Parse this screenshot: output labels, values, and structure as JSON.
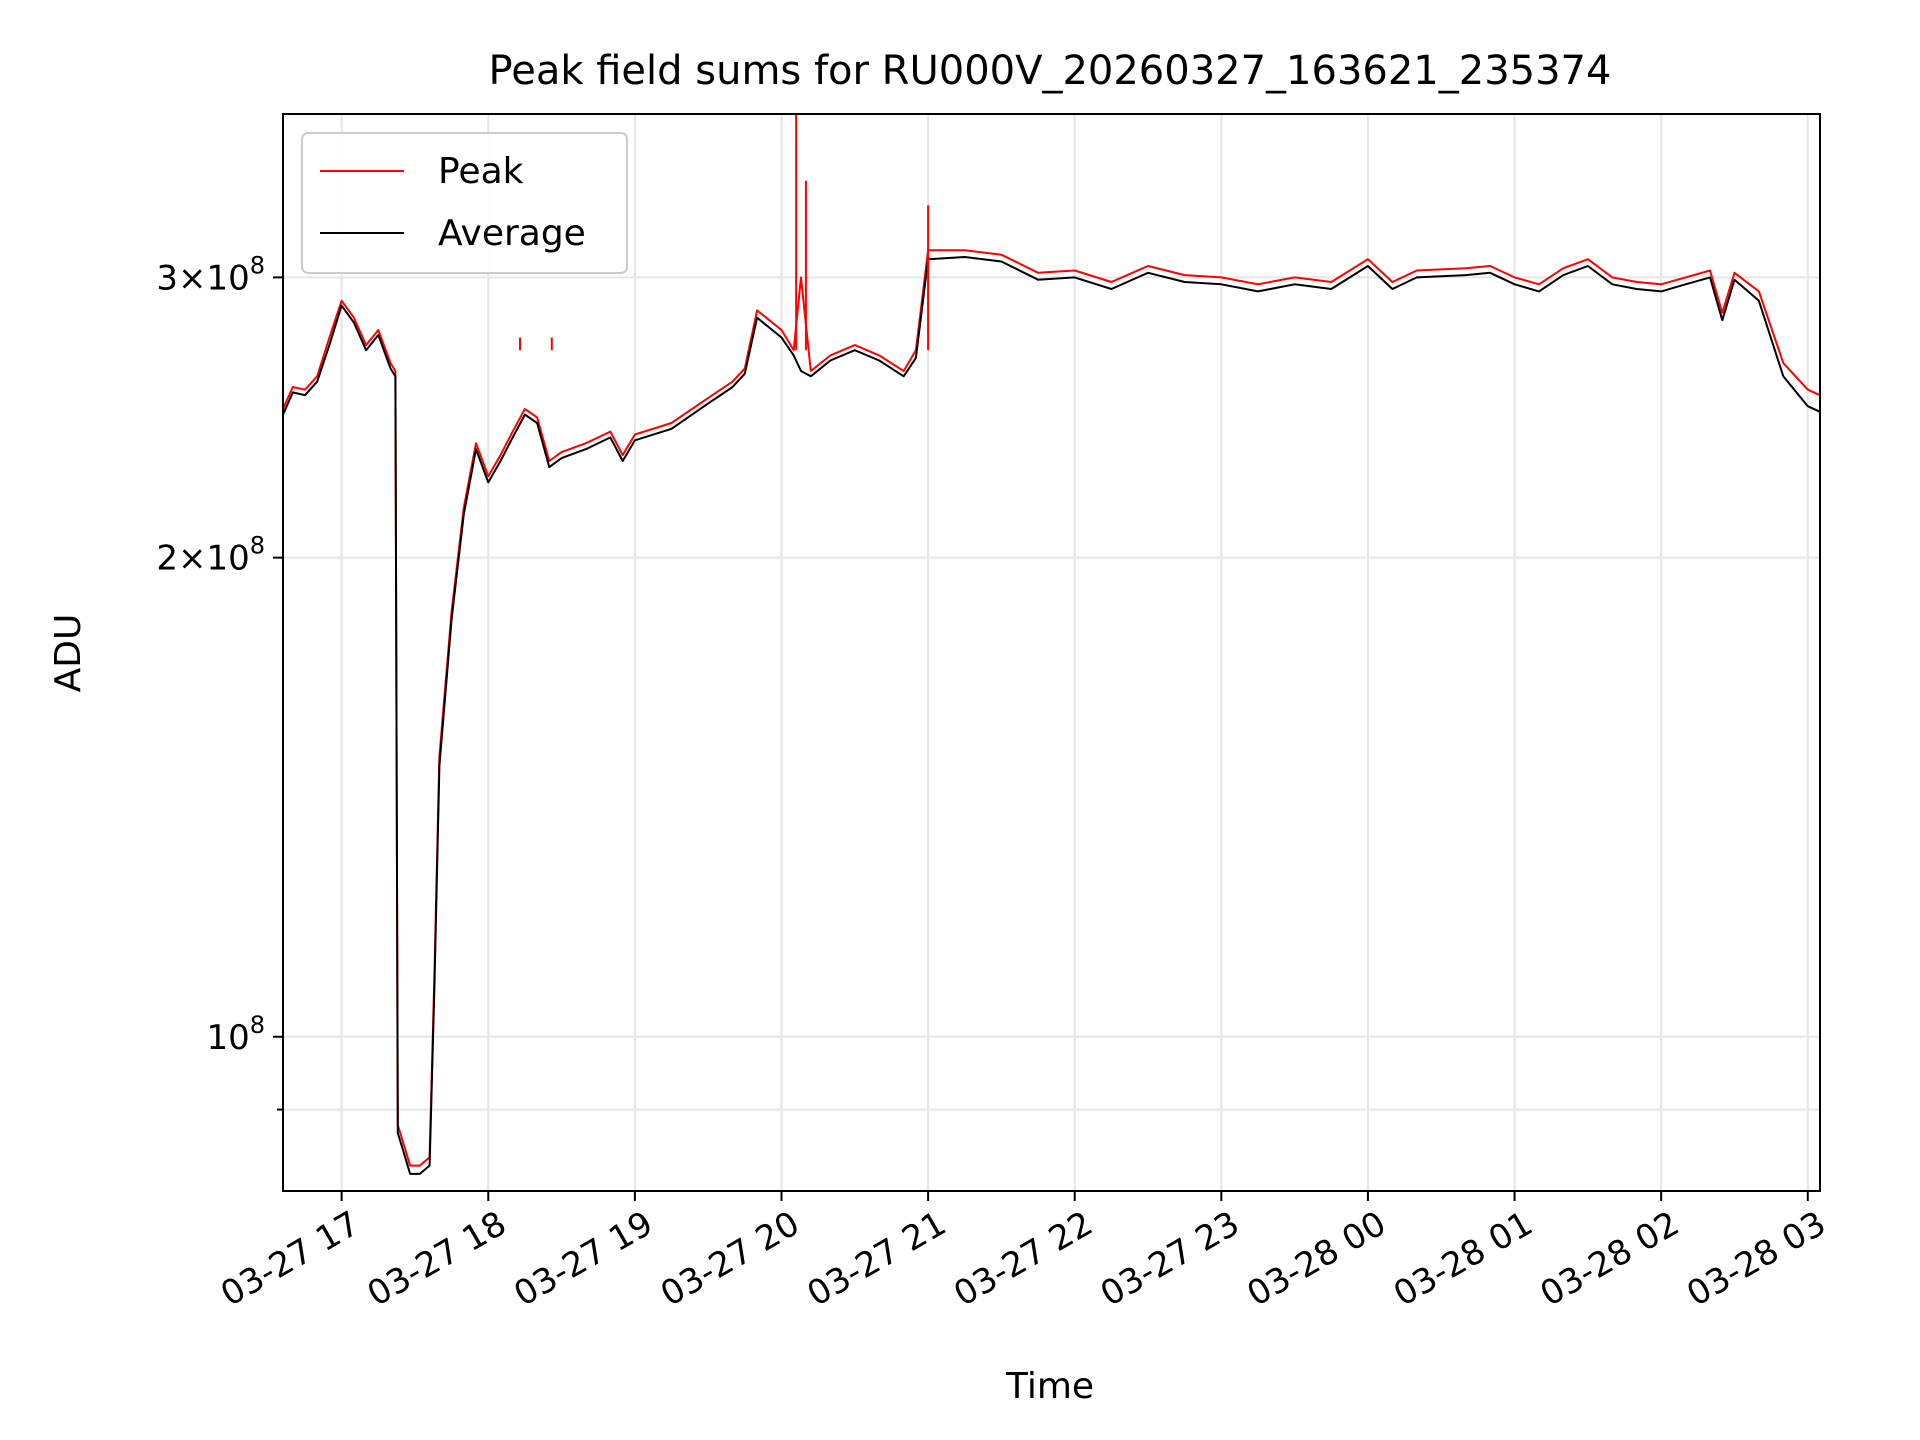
{
  "chart_data": {
    "type": "line",
    "title": "Peak field sums for RU000V_20260327_163621_235374",
    "xlabel": "Time",
    "ylabel": "ADU",
    "x_ticks": [
      "03-27 17",
      "03-27 18",
      "03-27 19",
      "03-27 20",
      "03-27 21",
      "03-27 22",
      "03-27 23",
      "03-28 00",
      "03-28 01",
      "03-28 02",
      "03-28 03"
    ],
    "y_ticks": [
      {
        "base": "10",
        "exp": "8",
        "value": 100000000
      },
      {
        "base": "2×10",
        "exp": "8",
        "value": 200000000
      },
      {
        "base": "3×10",
        "exp": "8",
        "value": 300000000
      }
    ],
    "xlim": [
      "2026-03-27 16:36",
      "2026-03-28 03:05"
    ],
    "ylim": [
      80000000,
      380000000
    ],
    "y_scale": "log",
    "grid": true,
    "legend_position": "top-left",
    "series": [
      {
        "name": "Peak",
        "color": "#ff0000",
        "points": [
          [
            "16:36",
            248000000
          ],
          [
            "16:40",
            256000000
          ],
          [
            "16:45",
            255000000
          ],
          [
            "16:50",
            260000000
          ],
          [
            "16:55",
            275000000
          ],
          [
            "17:00",
            290000000
          ],
          [
            "17:05",
            283000000
          ],
          [
            "17:10",
            272000000
          ],
          [
            "17:15",
            278000000
          ],
          [
            "17:20",
            265000000
          ],
          [
            "17:22",
            262000000
          ],
          [
            "17:23",
            88000000
          ],
          [
            "17:25",
            86000000
          ],
          [
            "17:28",
            83000000
          ],
          [
            "17:32",
            83000000
          ],
          [
            "17:36",
            84000000
          ],
          [
            "17:38",
            110000000
          ],
          [
            "17:40",
            150000000
          ],
          [
            "17:45",
            185000000
          ],
          [
            "17:50",
            215000000
          ],
          [
            "17:55",
            236000000
          ],
          [
            "18:00",
            225000000
          ],
          [
            "18:05",
            232000000
          ],
          [
            "18:10",
            240000000
          ],
          [
            "18:15",
            248000000
          ],
          [
            "18:20",
            245000000
          ],
          [
            "18:25",
            230000000
          ],
          [
            "18:30",
            233000000
          ],
          [
            "18:40",
            236000000
          ],
          [
            "18:50",
            240000000
          ],
          [
            "18:55",
            232000000
          ],
          [
            "19:00",
            239000000
          ],
          [
            "19:15",
            243000000
          ],
          [
            "19:30",
            252000000
          ],
          [
            "19:40",
            258000000
          ],
          [
            "19:45",
            263000000
          ],
          [
            "19:50",
            286000000
          ],
          [
            "20:00",
            278000000
          ],
          [
            "20:05",
            270000000
          ],
          [
            "20:08",
            300000000
          ],
          [
            "20:12",
            262000000
          ],
          [
            "20:20",
            268000000
          ],
          [
            "20:30",
            272000000
          ],
          [
            "20:40",
            268000000
          ],
          [
            "20:50",
            262000000
          ],
          [
            "20:55",
            270000000
          ],
          [
            "21:00",
            312000000
          ],
          [
            "21:15",
            312000000
          ],
          [
            "21:30",
            310000000
          ],
          [
            "21:45",
            302000000
          ],
          [
            "22:00",
            303000000
          ],
          [
            "22:15",
            298000000
          ],
          [
            "22:30",
            305000000
          ],
          [
            "22:45",
            301000000
          ],
          [
            "23:00",
            300000000
          ],
          [
            "23:15",
            297000000
          ],
          [
            "23:30",
            300000000
          ],
          [
            "23:45",
            298000000
          ],
          [
            "00:00",
            308000000
          ],
          [
            "00:10",
            298000000
          ],
          [
            "00:20",
            303000000
          ],
          [
            "00:40",
            304000000
          ],
          [
            "00:50",
            305000000
          ],
          [
            "01:00",
            300000000
          ],
          [
            "01:10",
            297000000
          ],
          [
            "01:20",
            304000000
          ],
          [
            "01:30",
            308000000
          ],
          [
            "01:40",
            300000000
          ],
          [
            "01:50",
            298000000
          ],
          [
            "02:00",
            297000000
          ],
          [
            "02:10",
            300000000
          ],
          [
            "02:20",
            303000000
          ],
          [
            "02:25",
            285000000
          ],
          [
            "02:30",
            302000000
          ],
          [
            "02:40",
            294000000
          ],
          [
            "02:50",
            265000000
          ],
          [
            "03:00",
            255000000
          ],
          [
            "03:05",
            253000000
          ]
        ]
      },
      {
        "name": "Average",
        "color": "#000000",
        "points": [
          [
            "16:36",
            246000000
          ],
          [
            "16:40",
            254000000
          ],
          [
            "16:45",
            253000000
          ],
          [
            "16:50",
            258000000
          ],
          [
            "16:55",
            272000000
          ],
          [
            "17:00",
            288000000
          ],
          [
            "17:05",
            281000000
          ],
          [
            "17:10",
            270000000
          ],
          [
            "17:15",
            276000000
          ],
          [
            "17:20",
            263000000
          ],
          [
            "17:22",
            260000000
          ],
          [
            "17:23",
            87000000
          ],
          [
            "17:25",
            85000000
          ],
          [
            "17:28",
            82000000
          ],
          [
            "17:32",
            82000000
          ],
          [
            "17:36",
            83000000
          ],
          [
            "17:38",
            108000000
          ],
          [
            "17:40",
            148000000
          ],
          [
            "17:45",
            183000000
          ],
          [
            "17:50",
            213000000
          ],
          [
            "17:55",
            234000000
          ],
          [
            "18:00",
            223000000
          ],
          [
            "18:05",
            230000000
          ],
          [
            "18:10",
            238000000
          ],
          [
            "18:15",
            246000000
          ],
          [
            "18:20",
            243000000
          ],
          [
            "18:25",
            228000000
          ],
          [
            "18:30",
            231000000
          ],
          [
            "18:40",
            234000000
          ],
          [
            "18:50",
            238000000
          ],
          [
            "18:55",
            230000000
          ],
          [
            "19:00",
            237000000
          ],
          [
            "19:15",
            241000000
          ],
          [
            "19:30",
            250000000
          ],
          [
            "19:40",
            256000000
          ],
          [
            "19:45",
            261000000
          ],
          [
            "19:50",
            283000000
          ],
          [
            "20:00",
            275000000
          ],
          [
            "20:05",
            268000000
          ],
          [
            "20:08",
            262000000
          ],
          [
            "20:12",
            260000000
          ],
          [
            "20:20",
            266000000
          ],
          [
            "20:30",
            270000000
          ],
          [
            "20:40",
            266000000
          ],
          [
            "20:50",
            260000000
          ],
          [
            "20:55",
            267000000
          ],
          [
            "21:00",
            308000000
          ],
          [
            "21:15",
            309000000
          ],
          [
            "21:30",
            307000000
          ],
          [
            "21:45",
            299000000
          ],
          [
            "22:00",
            300000000
          ],
          [
            "22:15",
            295000000
          ],
          [
            "22:30",
            302000000
          ],
          [
            "22:45",
            298000000
          ],
          [
            "23:00",
            297000000
          ],
          [
            "23:15",
            294000000
          ],
          [
            "23:30",
            297000000
          ],
          [
            "23:45",
            295000000
          ],
          [
            "00:00",
            305000000
          ],
          [
            "00:10",
            295000000
          ],
          [
            "00:20",
            300000000
          ],
          [
            "00:40",
            301000000
          ],
          [
            "00:50",
            302000000
          ],
          [
            "01:00",
            297000000
          ],
          [
            "01:10",
            294000000
          ],
          [
            "01:20",
            301000000
          ],
          [
            "01:30",
            305000000
          ],
          [
            "01:40",
            297000000
          ],
          [
            "01:50",
            295000000
          ],
          [
            "02:00",
            294000000
          ],
          [
            "02:10",
            297000000
          ],
          [
            "02:20",
            300000000
          ],
          [
            "02:25",
            282000000
          ],
          [
            "02:30",
            299000000
          ],
          [
            "02:40",
            290000000
          ],
          [
            "02:50",
            260000000
          ],
          [
            "03:00",
            249000000
          ],
          [
            "03:05",
            247000000
          ]
        ]
      }
    ],
    "annotations": [
      {
        "series": "Peak",
        "time": "20:06",
        "value": 380000000,
        "type": "spike"
      },
      {
        "series": "Peak",
        "time": "20:10",
        "value": 345000000,
        "type": "spike"
      },
      {
        "series": "Peak",
        "time": "18:13",
        "value": 275000000,
        "type": "spike"
      },
      {
        "series": "Peak",
        "time": "18:26",
        "value": 275000000,
        "type": "spike"
      },
      {
        "series": "Peak",
        "time": "21:00",
        "value": 333000000,
        "type": "spike"
      }
    ]
  }
}
